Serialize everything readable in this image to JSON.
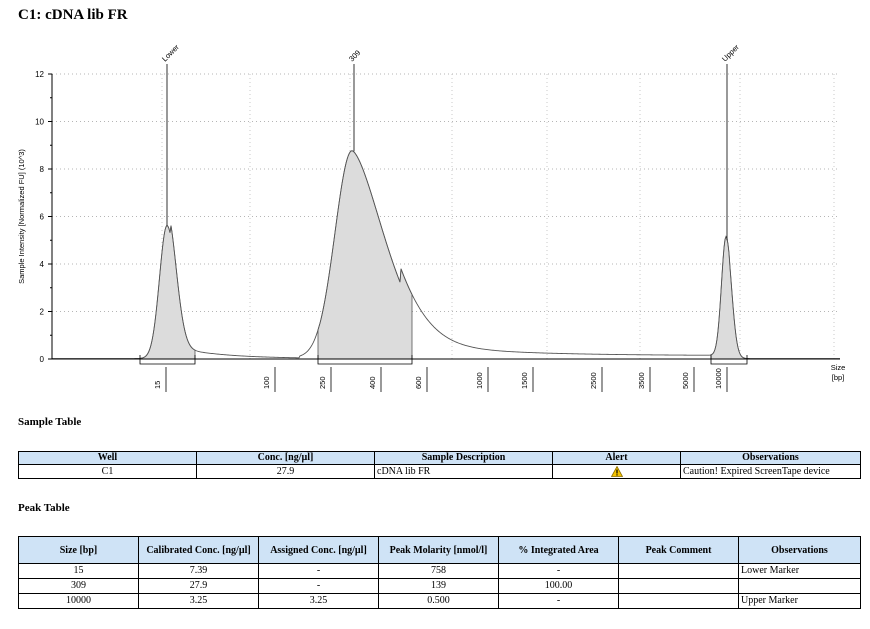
{
  "title": "C1: cDNA lib FR",
  "chart_data": {
    "type": "line",
    "ylabel": "Sample Intensity [Normalized FU] (10^3)",
    "xlabel": "Size\n[bp]",
    "xlabel_line1": "Size",
    "xlabel_line2": "[bp]",
    "ylim": [
      0,
      12
    ],
    "yticks": [
      0,
      2,
      4,
      6,
      8,
      10,
      12
    ],
    "grid": true,
    "xticks": [
      "15",
      "100",
      "250",
      "400",
      "600",
      "1000",
      "1500",
      "2500",
      "3500",
      "5000",
      "10000"
    ],
    "peak_labels": [
      "Lower",
      "309",
      "Upper"
    ],
    "peaks": [
      {
        "label": "Lower",
        "size": 15,
        "height": 5.6
      },
      {
        "label": "309",
        "size": 309,
        "height": 8.75
      },
      {
        "label": "Upper",
        "size": 10000,
        "height": 5.0
      }
    ]
  },
  "sample_table": {
    "title": "Sample Table",
    "headers": [
      "Well",
      "Conc. [ng/µl]",
      "Sample Description",
      "Alert",
      "Observations"
    ],
    "rows": [
      [
        "C1",
        "27.9",
        "cDNA lib FR",
        "warning",
        "Caution! Expired ScreenTape device"
      ]
    ]
  },
  "peak_table": {
    "title": "Peak Table",
    "headers": [
      "Size [bp]",
      "Calibrated Conc. [ng/µl]",
      "Assigned Conc. [ng/µl]",
      "Peak Molarity [nmol/l]",
      "% Integrated Area",
      "Peak Comment",
      "Observations"
    ],
    "rows": [
      [
        "15",
        "7.39",
        "-",
        "758",
        "-",
        "",
        "Lower Marker"
      ],
      [
        "309",
        "27.9",
        "-",
        "139",
        "100.00",
        "",
        ""
      ],
      [
        "10000",
        "3.25",
        "3.25",
        "0.500",
        "-",
        "",
        "Upper Marker"
      ]
    ]
  },
  "colors": {
    "header_bg": "#cfe3f6",
    "fill": "#dcdcdc",
    "alert": "#f5c400"
  }
}
